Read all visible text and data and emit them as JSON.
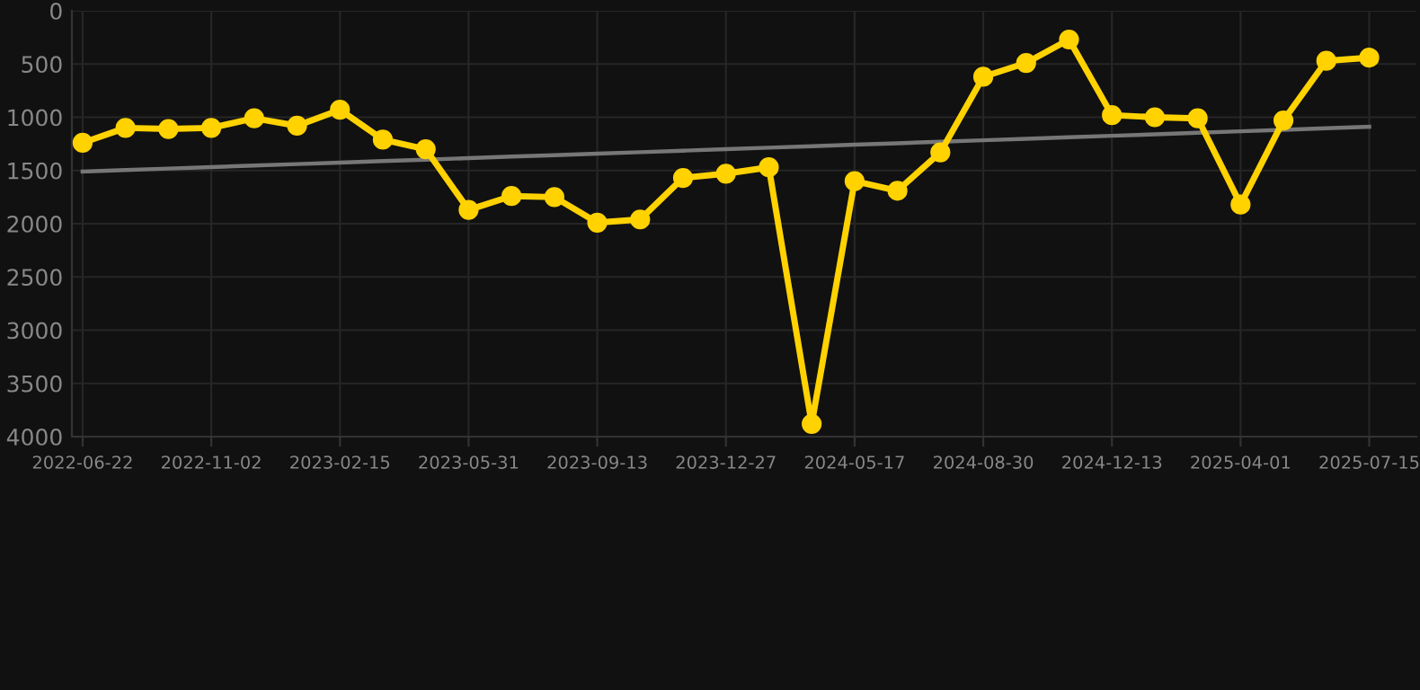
{
  "chart_data": {
    "type": "line",
    "categories": [
      "2022-06-22",
      null,
      null,
      "2022-11-02",
      null,
      null,
      "2023-02-15",
      null,
      null,
      "2023-05-31",
      null,
      null,
      "2023-09-13",
      null,
      null,
      "2023-12-27",
      null,
      null,
      "2024-05-17",
      null,
      null,
      "2024-08-30",
      null,
      null,
      "2024-12-13",
      null,
      null,
      "2025-04-01",
      null,
      null,
      "2025-07-15"
    ],
    "series": [
      {
        "color": "#ffd200",
        "marker": "circle",
        "values": [
          1240,
          1100,
          1110,
          1100,
          1010,
          1080,
          930,
          1210,
          1300,
          1870,
          1740,
          1750,
          1990,
          1960,
          1570,
          1530,
          1470,
          3880,
          1600,
          1690,
          1330,
          620,
          490,
          270,
          980,
          1000,
          1010,
          1820,
          1030,
          470,
          440
        ]
      },
      {
        "type": "line",
        "color": "#777777",
        "marker": "none",
        "values": [
          1510,
          1496,
          1482,
          1468,
          1454,
          1440,
          1426,
          1412,
          1398,
          1384,
          1370,
          1356,
          1342,
          1328,
          1314,
          1300,
          1286,
          1272,
          1258,
          1244,
          1230,
          1216,
          1202,
          1188,
          1174,
          1160,
          1146,
          1132,
          1118,
          1104,
          1090
        ]
      }
    ],
    "ylim": [
      4000,
      0
    ],
    "yticks": [
      0,
      500,
      1000,
      1500,
      2000,
      2500,
      3000,
      3500,
      4000
    ],
    "grid": true
  }
}
